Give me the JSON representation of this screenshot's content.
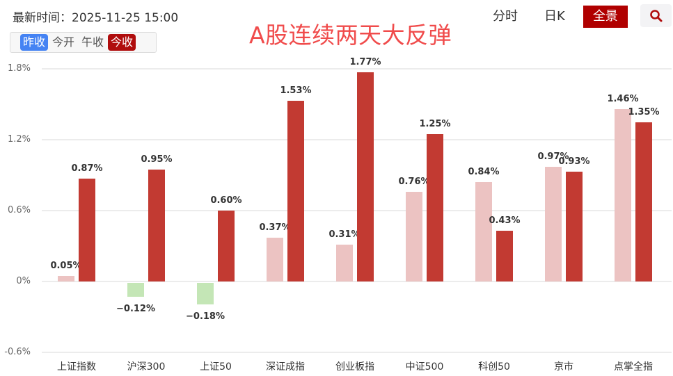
{
  "header": {
    "timestamp_label": "最新时间：",
    "timestamp_value": "2025-11-25 15:00",
    "timestamp": "最新时间：2025-11-25 15:00",
    "segments": [
      {
        "label": "昨收",
        "state": "active-blue"
      },
      {
        "label": "今开",
        "state": ""
      },
      {
        "label": "午收",
        "state": ""
      },
      {
        "label": "今收",
        "state": "active-red"
      }
    ],
    "headline": "A股连续两天大反弹",
    "tabs": [
      {
        "label": "分时",
        "active": false
      },
      {
        "label": "日K",
        "active": false
      },
      {
        "label": "全景",
        "active": true
      }
    ],
    "search_icon": "search-icon"
  },
  "colors": {
    "prev_positive": "#ecc3c2",
    "prev_negative": "#c4e6b6",
    "current": "#c23a32",
    "headline": "#f04b4b",
    "active_tab": "#b00000",
    "active_blue": "#4583f3"
  },
  "chart_data": {
    "type": "bar",
    "title": "A股连续两天大反弹",
    "xlabel": "",
    "ylabel": "",
    "ylim": [
      -0.6,
      1.8
    ],
    "yticks": [
      "1.8%",
      "1.2%",
      "0.6%",
      "0%",
      "-0.6%"
    ],
    "ytick_values": [
      1.8,
      1.2,
      0.6,
      0,
      -0.6
    ],
    "grid": true,
    "categories": [
      "上证指数",
      "沪深300",
      "上证50",
      "深证成指",
      "创业板指",
      "中证500",
      "科创50",
      "京市",
      "点掌全指"
    ],
    "series": [
      {
        "name": "昨收",
        "values": [
          0.05,
          -0.12,
          -0.18,
          0.37,
          0.31,
          0.76,
          0.84,
          0.97,
          1.46
        ],
        "labels": [
          "0.05%",
          "-0.12%",
          "-0.18%",
          "0.37%",
          "0.31%",
          "0.76%",
          "0.84%",
          "0.97%",
          "1.46%"
        ]
      },
      {
        "name": "今收",
        "values": [
          0.87,
          0.95,
          0.6,
          1.53,
          1.77,
          1.25,
          0.43,
          0.93,
          1.35
        ],
        "labels": [
          "0.87%",
          "0.95%",
          "0.60%",
          "1.53%",
          "1.77%",
          "1.25%",
          "0.43%",
          "0.93%",
          "1.35%"
        ]
      }
    ]
  }
}
